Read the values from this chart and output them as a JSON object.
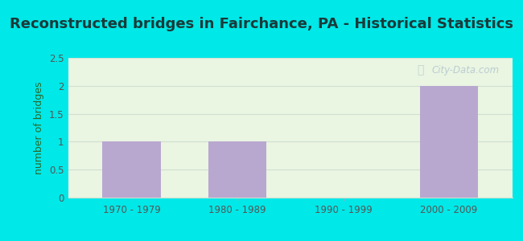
{
  "title": "Reconstructed bridges in Fairchance, PA - Historical Statistics",
  "categories": [
    "1970 - 1979",
    "1980 - 1989",
    "1990 - 1999",
    "2000 - 2009"
  ],
  "values": [
    1,
    1,
    0,
    2
  ],
  "bar_color": "#b8a8d0",
  "ylabel": "number of bridges",
  "ylim": [
    0,
    2.5
  ],
  "yticks": [
    0,
    0.5,
    1,
    1.5,
    2,
    2.5
  ],
  "background_outer": "#00e8e8",
  "background_inner": "#eaf5e2",
  "grid_color": "#d0e0d0",
  "title_color": "#1a3a3a",
  "axis_label_color": "#2a6a2a",
  "tick_color": "#555555",
  "watermark": "City-Data.com",
  "title_fontsize": 13,
  "ylabel_fontsize": 9
}
